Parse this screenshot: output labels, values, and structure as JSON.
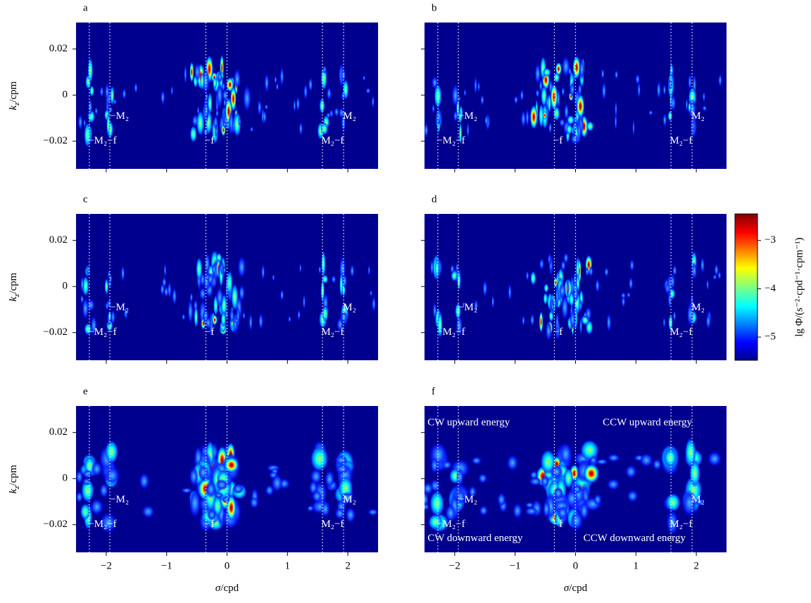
{
  "chart_data": [
    {
      "type": "heatmap",
      "title": "a",
      "xlim": [
        -2.5,
        2.5
      ],
      "ylim": [
        -0.032,
        0.0315
      ],
      "xticks": [
        -2,
        -1,
        0,
        1,
        2
      ],
      "yticks": [
        {
          "value": 0.02,
          "label": "0.02"
        },
        0,
        {
          "value": -0.02,
          "label": "−0.02"
        }
      ],
      "ylabel": {
        "symbol": "k",
        "subscript": "z",
        "unit": "/cpm"
      },
      "ref_lines": [
        -2.28,
        -1.94,
        -0.35,
        0,
        1.58,
        1.93
      ],
      "annotations": [
        {
          "text": "−M₂−f",
          "x": -2.3,
          "y": -0.02
        },
        {
          "text": "−M₂",
          "x": -1.94,
          "y": -0.0092
        },
        {
          "text": "−f",
          "x": -0.37,
          "y": -0.02
        },
        {
          "text": "M₂−f",
          "x": 1.56,
          "y": -0.02
        },
        {
          "text": "M₂",
          "x": 1.92,
          "y": -0.0092
        }
      ]
    },
    {
      "type": "heatmap",
      "title": "b",
      "xlim": [
        -2.5,
        2.5
      ],
      "ylim": [
        -0.032,
        0.0315
      ],
      "xticks": [
        -2,
        -1,
        0,
        1,
        2
      ],
      "yticks": [
        0.02,
        0,
        -0.02
      ],
      "ref_lines": [
        -2.28,
        -1.94,
        -0.35,
        0,
        1.58,
        1.93
      ],
      "annotations": [
        {
          "text": "−M₂−f",
          "x": -2.3,
          "y": -0.02
        },
        {
          "text": "−M₂",
          "x": -1.94,
          "y": -0.0092
        },
        {
          "text": "−f",
          "x": -0.37,
          "y": -0.02
        },
        {
          "text": "M₂−f",
          "x": 1.56,
          "y": -0.02
        },
        {
          "text": "M₂",
          "x": 1.92,
          "y": -0.0092
        }
      ]
    },
    {
      "type": "heatmap",
      "title": "c",
      "xlim": [
        -2.5,
        2.5
      ],
      "ylim": [
        -0.032,
        0.0315
      ],
      "xticks": [
        -2,
        -1,
        0,
        1,
        2
      ],
      "yticks": [
        {
          "value": 0.02,
          "label": "0.02"
        },
        0,
        {
          "value": -0.02,
          "label": "−0.02"
        }
      ],
      "ylabel": {
        "symbol": "k",
        "subscript": "z",
        "unit": "/cpm"
      },
      "ref_lines": [
        -2.28,
        -1.94,
        -0.35,
        0,
        1.58,
        1.93
      ],
      "annotations": [
        {
          "text": "−M₂−f",
          "x": -2.3,
          "y": -0.02
        },
        {
          "text": "−M₂",
          "x": -1.94,
          "y": -0.0092
        },
        {
          "text": "−f",
          "x": -0.37,
          "y": -0.02
        },
        {
          "text": "M₂−f",
          "x": 1.56,
          "y": -0.02
        },
        {
          "text": "M₂",
          "x": 1.92,
          "y": -0.0092
        }
      ]
    },
    {
      "type": "heatmap",
      "title": "d",
      "xlim": [
        -2.5,
        2.5
      ],
      "ylim": [
        -0.032,
        0.0315
      ],
      "xticks": [
        -2,
        -1,
        0,
        1,
        2
      ],
      "yticks": [
        0.02,
        0,
        -0.02
      ],
      "ref_lines": [
        -2.28,
        -1.94,
        -0.35,
        0,
        1.58,
        1.93
      ],
      "annotations": [
        {
          "text": "−M₂−f",
          "x": -2.3,
          "y": -0.02
        },
        {
          "text": "−M₂",
          "x": -1.94,
          "y": -0.0092
        },
        {
          "text": "−f",
          "x": -0.37,
          "y": -0.02
        },
        {
          "text": "M₂−f",
          "x": 1.56,
          "y": -0.02
        },
        {
          "text": "M₂",
          "x": 1.92,
          "y": -0.0092
        }
      ],
      "colorbar": {
        "label": "lg Φ/(s⁻²·cpd⁻¹·cpm⁻¹)",
        "lim": [
          -5.48,
          -2.45
        ],
        "ticks": [
          {
            "value": -3,
            "label": "−3"
          },
          {
            "value": -4,
            "label": "−4"
          },
          {
            "value": -5,
            "label": "−5"
          }
        ]
      }
    },
    {
      "type": "heatmap",
      "title": "e",
      "xlim": [
        -2.5,
        2.5
      ],
      "ylim": [
        -0.032,
        0.0315
      ],
      "xticks": [
        {
          "value": -2,
          "label": "−2"
        },
        {
          "value": -1,
          "label": "−1"
        },
        0,
        1,
        2
      ],
      "yticks": [
        {
          "value": 0.02,
          "label": "0.02"
        },
        0,
        {
          "value": -0.02,
          "label": "−0.02"
        }
      ],
      "xlabel": {
        "symbol": "σ",
        "unit": "/cpd"
      },
      "ylabel": {
        "symbol": "k",
        "subscript": "z",
        "unit": "/cpm"
      },
      "ref_lines": [
        -2.28,
        -1.94,
        -0.35,
        0,
        1.58,
        1.93
      ],
      "annotations": [
        {
          "text": "−M₂−f",
          "x": -2.3,
          "y": -0.02
        },
        {
          "text": "−M₂",
          "x": -1.94,
          "y": -0.0092
        },
        {
          "text": "−f",
          "x": -0.37,
          "y": -0.02
        },
        {
          "text": "M₂−f",
          "x": 1.56,
          "y": -0.02
        },
        {
          "text": "M₂",
          "x": 1.92,
          "y": -0.0092
        }
      ]
    },
    {
      "type": "heatmap",
      "title": "f",
      "xlim": [
        -2.5,
        2.5
      ],
      "ylim": [
        -0.032,
        0.0315
      ],
      "xticks": [
        {
          "value": -2,
          "label": "−2"
        },
        {
          "value": -1,
          "label": "−1"
        },
        0,
        1,
        2
      ],
      "yticks": [
        0.02,
        0,
        -0.02
      ],
      "xlabel": {
        "symbol": "σ",
        "unit": "/cpd"
      },
      "ref_lines": [
        -2.28,
        -1.94,
        -0.35,
        0,
        1.58,
        1.93
      ],
      "annotations": [
        {
          "text": "−M₂−f",
          "x": -2.3,
          "y": -0.02
        },
        {
          "text": "−M₂",
          "x": -1.94,
          "y": -0.0092
        },
        {
          "text": "−f",
          "x": -0.37,
          "y": -0.02
        },
        {
          "text": "M₂−f",
          "x": 1.56,
          "y": -0.02
        },
        {
          "text": "M₂",
          "x": 1.92,
          "y": -0.0092
        },
        {
          "text": "CW upward energy",
          "x": -2.45,
          "y": 0.0242
        },
        {
          "text": "CCW upward energy",
          "x": 0.45,
          "y": 0.0242
        },
        {
          "text": "CW downward energy",
          "x": -2.45,
          "y": -0.026
        },
        {
          "text": "CCW downward energy",
          "x": 0.13,
          "y": -0.026
        }
      ]
    }
  ]
}
